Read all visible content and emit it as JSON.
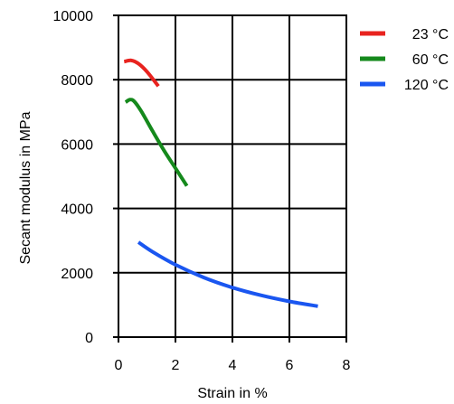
{
  "chart_data": {
    "type": "line",
    "title": "",
    "xlabel": "Strain in %",
    "ylabel": "Secant modulus in MPa",
    "xlim": [
      0,
      8
    ],
    "ylim": [
      0,
      10000
    ],
    "x_ticks": [
      0,
      2,
      4,
      6,
      8
    ],
    "y_ticks": [
      0,
      2000,
      4000,
      6000,
      8000,
      10000
    ],
    "grid": true,
    "legend_position": "top-right outside",
    "series": [
      {
        "name": "23 °C",
        "color": "#e8231f",
        "points": [
          [
            0.2,
            8560
          ],
          [
            0.45,
            8600
          ],
          [
            0.7,
            8500
          ],
          [
            1.0,
            8250
          ],
          [
            1.4,
            7800
          ]
        ]
      },
      {
        "name": "60 °C",
        "color": "#15891c",
        "points": [
          [
            0.25,
            7300
          ],
          [
            0.4,
            7380
          ],
          [
            0.55,
            7330
          ],
          [
            0.8,
            7020
          ],
          [
            1.2,
            6400
          ],
          [
            1.6,
            5800
          ],
          [
            2.0,
            5250
          ],
          [
            2.4,
            4700
          ]
        ]
      },
      {
        "name": "120 °C",
        "color": "#1a56f0",
        "points": [
          [
            0.7,
            2950
          ],
          [
            1.2,
            2650
          ],
          [
            2.0,
            2250
          ],
          [
            3.0,
            1850
          ],
          [
            4.0,
            1540
          ],
          [
            5.0,
            1300
          ],
          [
            6.0,
            1110
          ],
          [
            7.0,
            960
          ]
        ]
      }
    ]
  }
}
